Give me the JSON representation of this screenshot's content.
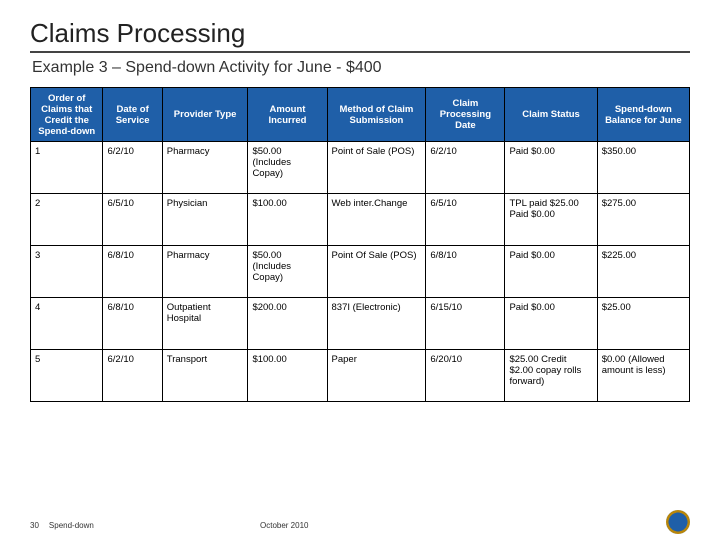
{
  "title": "Claims Processing",
  "subtitle": "Example 3 – Spend-down Activity for June - $400",
  "header_bg": "#1f5fa8",
  "header_fg": "#ffffff",
  "columns": [
    "Order of Claims that Credit the Spend-down",
    "Date of Service",
    "Provider Type",
    "Amount Incurred",
    "Method of Claim Submission",
    "Claim Processing Date",
    "Claim Status",
    "Spend-down Balance for June"
  ],
  "rows": [
    [
      "1",
      "6/2/10",
      "Pharmacy",
      "$50.00 (Includes Copay)",
      "Point of Sale (POS)",
      "6/2/10",
      "Paid $0.00",
      "$350.00"
    ],
    [
      "2",
      "6/5/10",
      "Physician",
      "$100.00",
      "Web inter.Change",
      "6/5/10",
      "TPL paid $25.00 Paid $0.00",
      "$275.00"
    ],
    [
      "3",
      "6/8/10",
      "Pharmacy",
      "$50.00 (Includes Copay)",
      "Point Of Sale (POS)",
      "6/8/10",
      "Paid $0.00",
      "$225.00"
    ],
    [
      "4",
      "6/8/10",
      "Outpatient Hospital",
      "$200.00",
      "837I (Electronic)",
      "6/15/10",
      "Paid $0.00",
      "$25.00"
    ],
    [
      "5",
      "6/2/10",
      "Transport",
      "$100.00",
      "Paper",
      "6/20/10",
      "$25.00 Credit $2.00 copay rolls forward)",
      "$0.00 (Allowed amount is less)"
    ]
  ],
  "footer": {
    "page": "30",
    "section": "Spend-down",
    "date": "October 2010"
  }
}
